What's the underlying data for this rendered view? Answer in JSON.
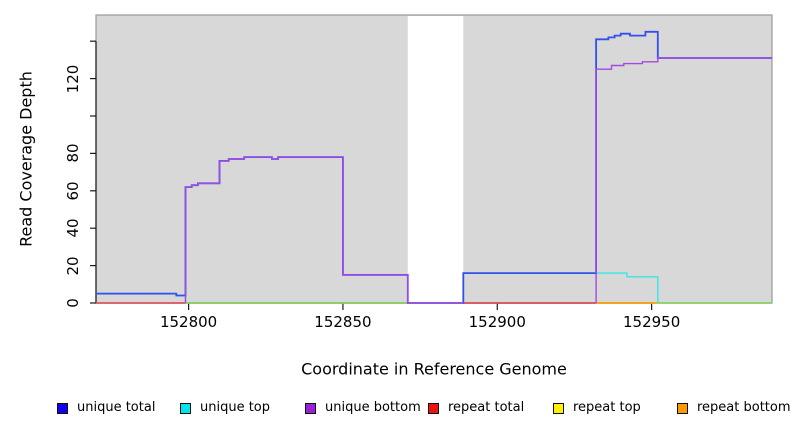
{
  "figure": {
    "xlabel": "Coordinate in Reference Genome",
    "ylabel": "Read Coverage Depth"
  },
  "colors": {
    "panel_background": "#d8d8d8",
    "panel_border": "#9a9a9a",
    "axis_line": "#1a1a1a",
    "gap_fill": "#ffffff"
  },
  "legend": [
    {
      "label": "unique total",
      "color": "#1100ee"
    },
    {
      "label": "unique top",
      "color": "#00e6ee"
    },
    {
      "label": "unique bottom",
      "color": "#9b1fd6"
    },
    {
      "label": "repeat total",
      "color": "#ee1111"
    },
    {
      "label": "repeat top",
      "color": "#fff200"
    },
    {
      "label": "repeat bottom",
      "color": "#ff9900"
    }
  ],
  "chart_data": {
    "type": "line",
    "title": "",
    "xlabel": "Coordinate in Reference Genome",
    "ylabel": "Read Coverage Depth",
    "xlim": [
      152770,
      152989
    ],
    "ylim": [
      0,
      154
    ],
    "x_tick_values": [
      152800,
      152850,
      152900,
      152950
    ],
    "x_tick_labels": [
      "152800",
      "152850",
      "152900",
      "152950"
    ],
    "y_tick_values": [
      0,
      20,
      40,
      60,
      80,
      100,
      120,
      140
    ],
    "y_labeled_ticks": [
      0,
      20,
      40,
      60,
      80,
      120
    ],
    "grid": false,
    "legend_position": "bottom",
    "gap_region": {
      "x_start": 152871,
      "x_end": 152889
    },
    "series": [
      {
        "name": "repeat top",
        "color": "#fff200",
        "width": 1.4,
        "segments": [
          [
            [
              152770,
              0
            ],
            [
              152989,
              0
            ]
          ]
        ]
      },
      {
        "name": "repeat total",
        "color": "#d63b6e",
        "width": 1.5,
        "segments": [
          [
            [
              152770,
              0
            ],
            [
              152799,
              0
            ]
          ],
          [
            [
              152889,
              0
            ],
            [
              152932,
              0
            ]
          ]
        ]
      },
      {
        "name": "baseline",
        "color": "#77cc77",
        "width": 1.5,
        "segments": [
          [
            [
              152799,
              0
            ],
            [
              152871,
              0
            ]
          ],
          [
            [
              152952,
              0
            ],
            [
              152989,
              0
            ]
          ]
        ]
      },
      {
        "name": "repeat bottom",
        "color": "#ff9414",
        "width": 1.6,
        "segments": [
          [
            [
              152932,
              0
            ],
            [
              152952,
              0
            ]
          ]
        ]
      },
      {
        "name": "unique top",
        "color": "#33e8e8",
        "width": 1.4,
        "segments": [
          [
            [
              152770,
              5
            ],
            [
              152796,
              5
            ],
            [
              152796,
              4
            ],
            [
              152799,
              4
            ],
            [
              152799,
              0
            ]
          ],
          [
            [
              152889,
              16
            ],
            [
              152942,
              16
            ],
            [
              152942,
              14
            ],
            [
              152952,
              14
            ],
            [
              152952,
              0
            ]
          ]
        ]
      },
      {
        "name": "unique total",
        "color": "#3350ee",
        "width": 1.8,
        "segments": [
          [
            [
              152770,
              5
            ],
            [
              152796,
              5
            ],
            [
              152796,
              4
            ],
            [
              152799,
              4
            ],
            [
              152799,
              62
            ],
            [
              152801,
              62
            ],
            [
              152801,
              63
            ],
            [
              152803,
              63
            ],
            [
              152803,
              64
            ],
            [
              152810,
              64
            ],
            [
              152810,
              76
            ],
            [
              152813,
              76
            ],
            [
              152813,
              77
            ],
            [
              152818,
              77
            ],
            [
              152818,
              78
            ],
            [
              152827,
              78
            ],
            [
              152827,
              77
            ],
            [
              152829,
              77
            ],
            [
              152829,
              78
            ],
            [
              152850,
              78
            ],
            [
              152850,
              15
            ],
            [
              152871,
              15
            ],
            [
              152871,
              0
            ],
            [
              152889,
              0
            ],
            [
              152889,
              16
            ],
            [
              152932,
              16
            ],
            [
              152932,
              141
            ],
            [
              152936,
              141
            ],
            [
              152936,
              142
            ],
            [
              152938,
              142
            ],
            [
              152938,
              143
            ],
            [
              152940,
              143
            ],
            [
              152940,
              144
            ],
            [
              152943,
              144
            ],
            [
              152943,
              143
            ],
            [
              152948,
              143
            ],
            [
              152948,
              145
            ],
            [
              152952,
              145
            ],
            [
              152952,
              131
            ],
            [
              152989,
              131
            ]
          ]
        ]
      },
      {
        "name": "unique bottom",
        "color": "#a44ae0",
        "width": 1.4,
        "segments": [
          [
            [
              152799,
              0
            ],
            [
              152799,
              62
            ],
            [
              152801,
              62
            ],
            [
              152801,
              63
            ],
            [
              152803,
              63
            ],
            [
              152803,
              64
            ],
            [
              152810,
              64
            ],
            [
              152810,
              76
            ],
            [
              152813,
              76
            ],
            [
              152813,
              77
            ],
            [
              152818,
              77
            ],
            [
              152818,
              78
            ],
            [
              152827,
              78
            ],
            [
              152827,
              77
            ],
            [
              152829,
              77
            ],
            [
              152829,
              78
            ],
            [
              152850,
              78
            ],
            [
              152850,
              15
            ],
            [
              152871,
              15
            ],
            [
              152871,
              0
            ],
            [
              152889,
              0
            ]
          ],
          [
            [
              152932,
              0
            ],
            [
              152932,
              125
            ],
            [
              152937,
              125
            ],
            [
              152937,
              127
            ],
            [
              152941,
              127
            ],
            [
              152941,
              128
            ],
            [
              152947,
              128
            ],
            [
              152947,
              129
            ],
            [
              152952,
              129
            ],
            [
              152952,
              131
            ],
            [
              152989,
              131
            ]
          ]
        ]
      }
    ]
  }
}
